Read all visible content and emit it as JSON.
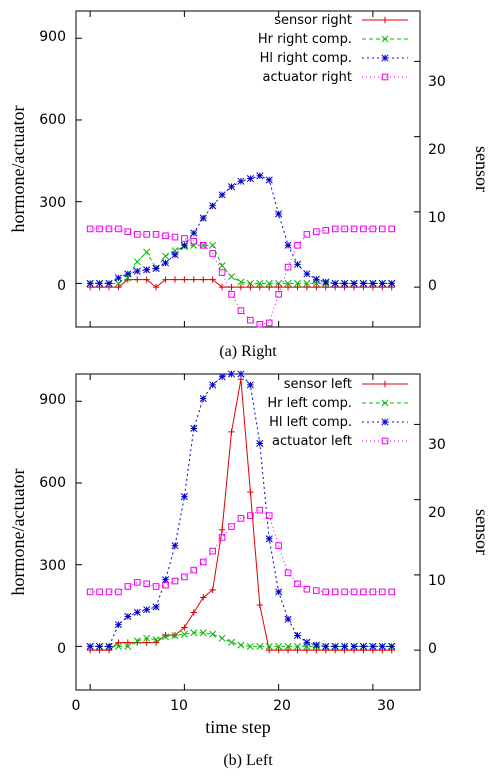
{
  "chart_data": [
    {
      "type": "line",
      "caption": "(a) Right",
      "ylabel": "hormone/actuator",
      "y2label": "sensor",
      "xlabel": "",
      "xlim": [
        -1.5,
        35
      ],
      "ylim": [
        -160,
        1000
      ],
      "y2lim": [
        -5.3,
        36.7
      ],
      "xticks": [],
      "yticks": [
        "0",
        "300",
        "600",
        "900"
      ],
      "y2ticks": [
        "0",
        "10",
        "20",
        "30"
      ],
      "legend_position": "top-right",
      "series": [
        {
          "name": "sensor right",
          "axis": "y2",
          "color": "#dd0000",
          "dash": "",
          "marker": "plus",
          "x": [
            0,
            1,
            2,
            3,
            4,
            5,
            6,
            7,
            8,
            9,
            10,
            11,
            12,
            13,
            14,
            15,
            16,
            17,
            18,
            19,
            20,
            21,
            22,
            23,
            24,
            25,
            26,
            27,
            28,
            29,
            30,
            31,
            32
          ],
          "y": [
            0,
            0,
            0,
            0,
            1,
            1,
            1,
            0,
            1,
            1,
            1,
            1,
            1,
            1,
            0,
            0,
            0,
            0,
            0,
            0,
            0,
            0,
            0,
            0,
            0,
            0,
            0,
            0,
            0,
            0,
            0,
            0,
            0
          ]
        },
        {
          "name": "Hr right comp.",
          "axis": "y",
          "color": "#00bb00",
          "dash": "4,3",
          "marker": "x",
          "x": [
            0,
            1,
            2,
            3,
            4,
            5,
            6,
            7,
            8,
            9,
            10,
            11,
            12,
            13,
            14,
            15,
            16,
            17,
            18,
            19,
            20,
            21,
            22,
            23,
            24,
            25,
            26,
            27,
            28,
            29,
            30,
            31,
            32
          ],
          "y": [
            0,
            0,
            0,
            0,
            20,
            80,
            115,
            55,
            100,
            120,
            135,
            140,
            140,
            140,
            65,
            25,
            5,
            0,
            0,
            0,
            0,
            0,
            0,
            0,
            0,
            0,
            0,
            0,
            0,
            0,
            0,
            0,
            0
          ]
        },
        {
          "name": "Hl right comp.",
          "axis": "y",
          "color": "#0000cc",
          "dash": "2,3",
          "marker": "star",
          "x": [
            0,
            1,
            2,
            3,
            4,
            5,
            6,
            7,
            8,
            9,
            10,
            11,
            12,
            13,
            14,
            15,
            16,
            17,
            18,
            19,
            20,
            21,
            22,
            23,
            24,
            25,
            26,
            27,
            28,
            29,
            30,
            31,
            32
          ],
          "y": [
            0,
            0,
            0,
            20,
            35,
            45,
            50,
            55,
            75,
            105,
            140,
            185,
            240,
            285,
            325,
            355,
            375,
            385,
            395,
            380,
            255,
            140,
            70,
            35,
            15,
            5,
            0,
            0,
            0,
            0,
            0,
            0,
            0
          ]
        },
        {
          "name": "actuator right",
          "axis": "y",
          "color": "#ee00ee",
          "dash": "1,3",
          "marker": "square",
          "x": [
            0,
            1,
            2,
            3,
            4,
            5,
            6,
            7,
            8,
            9,
            10,
            11,
            12,
            13,
            14,
            15,
            16,
            17,
            18,
            19,
            20,
            21,
            22,
            23,
            24,
            25,
            26,
            27,
            28,
            29,
            30,
            31,
            32
          ],
          "y": [
            200,
            200,
            200,
            200,
            190,
            180,
            180,
            180,
            175,
            170,
            165,
            155,
            140,
            110,
            40,
            -40,
            -100,
            -135,
            -150,
            -145,
            -40,
            60,
            140,
            180,
            190,
            195,
            200,
            200,
            200,
            200,
            200,
            200,
            200
          ]
        }
      ]
    },
    {
      "type": "line",
      "caption": "(b) Left",
      "ylabel": "hormone/actuator",
      "y2label": "sensor",
      "xlabel": "time step",
      "xlim": [
        -1.5,
        35
      ],
      "ylim": [
        -160,
        1000
      ],
      "y2lim": [
        -5.3,
        36.7
      ],
      "xticks": [
        "0",
        "10",
        "20",
        "30"
      ],
      "yticks": [
        "0",
        "300",
        "600",
        "900"
      ],
      "y2ticks": [
        "0",
        "10",
        "20",
        "30"
      ],
      "legend_position": "top-right",
      "series": [
        {
          "name": "sensor left",
          "axis": "y2",
          "color": "#dd0000",
          "dash": "",
          "marker": "plus",
          "x": [
            0,
            1,
            2,
            3,
            4,
            5,
            6,
            7,
            8,
            9,
            10,
            11,
            12,
            13,
            14,
            15,
            16,
            17,
            18,
            19,
            20,
            21,
            22,
            23,
            24,
            25,
            26,
            27,
            28,
            29,
            30,
            31,
            32
          ],
          "y": [
            0,
            0,
            0,
            1,
            1,
            1,
            1,
            1,
            2,
            2,
            3,
            5,
            7,
            8,
            16,
            29,
            36,
            21,
            6,
            0,
            0,
            0,
            0,
            0,
            0,
            0,
            0,
            0,
            0,
            0,
            0,
            0,
            0
          ]
        },
        {
          "name": "Hr left comp.",
          "axis": "y",
          "color": "#00bb00",
          "dash": "4,3",
          "marker": "x",
          "x": [
            0,
            1,
            2,
            3,
            4,
            5,
            6,
            7,
            8,
            9,
            10,
            11,
            12,
            13,
            14,
            15,
            16,
            17,
            18,
            19,
            20,
            21,
            22,
            23,
            24,
            25,
            26,
            27,
            28,
            29,
            30,
            31,
            32
          ],
          "y": [
            0,
            0,
            0,
            0,
            0,
            20,
            30,
            25,
            35,
            40,
            45,
            50,
            50,
            45,
            30,
            15,
            5,
            0,
            0,
            0,
            0,
            0,
            0,
            0,
            0,
            0,
            0,
            0,
            0,
            0,
            0,
            0,
            0
          ]
        },
        {
          "name": "Hl left comp.",
          "axis": "y",
          "color": "#0000cc",
          "dash": "2,3",
          "marker": "star",
          "x": [
            0,
            1,
            2,
            3,
            4,
            5,
            6,
            7,
            8,
            9,
            10,
            11,
            12,
            13,
            14,
            15,
            16,
            17,
            18,
            19,
            20,
            21,
            22,
            23,
            24,
            25,
            26,
            27,
            28,
            29,
            30,
            31,
            32
          ],
          "y": [
            0,
            0,
            0,
            80,
            110,
            125,
            135,
            145,
            245,
            370,
            550,
            800,
            910,
            960,
            990,
            1000,
            1000,
            960,
            745,
            395,
            200,
            100,
            40,
            15,
            5,
            0,
            0,
            0,
            0,
            0,
            0,
            0,
            0
          ]
        },
        {
          "name": "actuator left",
          "axis": "y",
          "color": "#ee00ee",
          "dash": "1,3",
          "marker": "square",
          "x": [
            0,
            1,
            2,
            3,
            4,
            5,
            6,
            7,
            8,
            9,
            10,
            11,
            12,
            13,
            14,
            15,
            16,
            17,
            18,
            19,
            20,
            21,
            22,
            23,
            24,
            25,
            26,
            27,
            28,
            29,
            30,
            31,
            32
          ],
          "y": [
            200,
            200,
            200,
            200,
            220,
            235,
            230,
            220,
            225,
            240,
            255,
            280,
            310,
            350,
            400,
            440,
            470,
            480,
            500,
            480,
            370,
            270,
            230,
            210,
            205,
            200,
            200,
            200,
            200,
            200,
            200,
            200,
            200
          ]
        }
      ]
    }
  ]
}
